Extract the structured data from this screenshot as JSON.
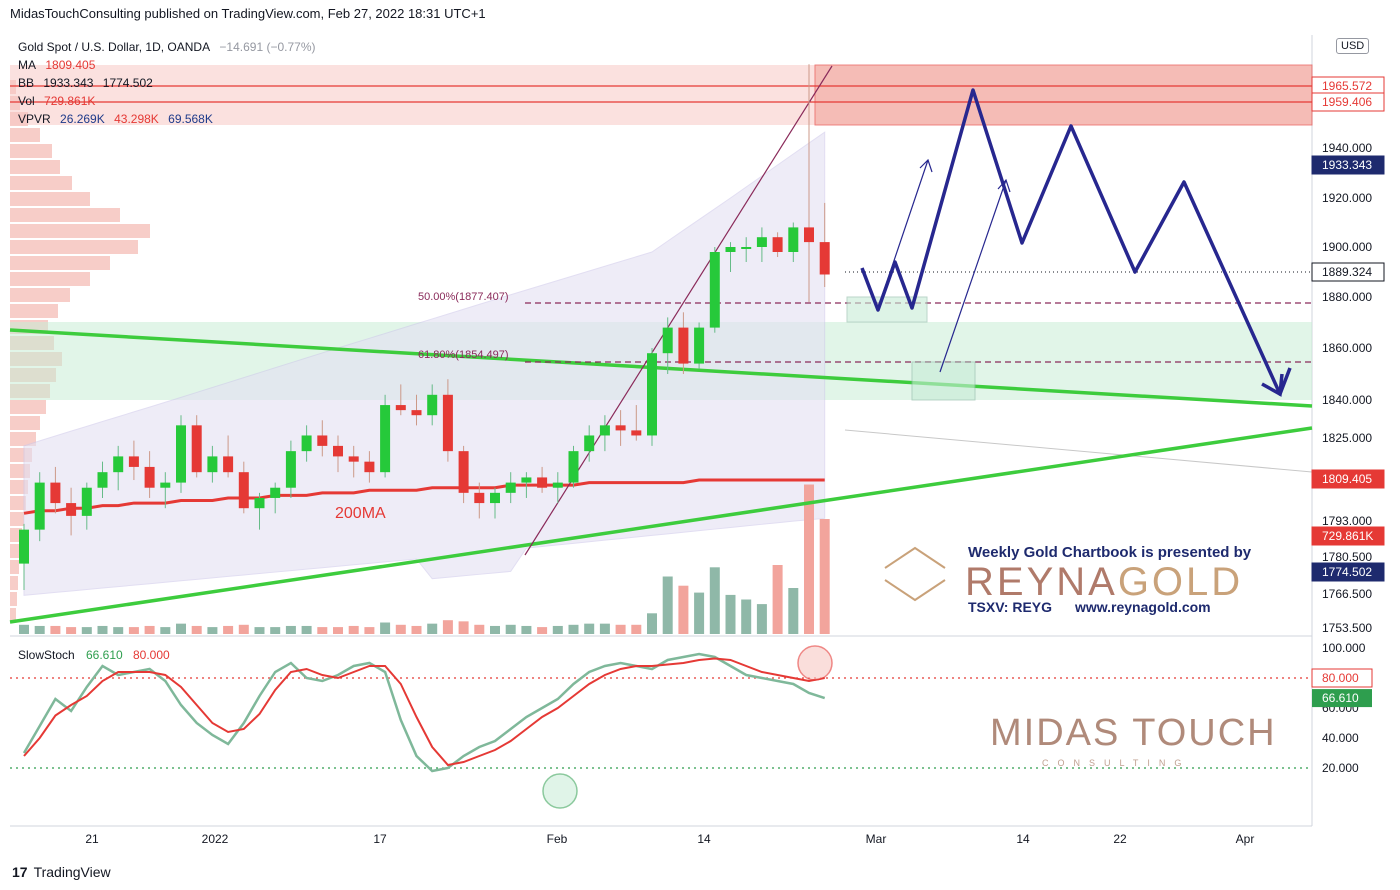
{
  "header": {
    "caption": "MidasTouchConsulting published on TradingView.com, Feb 27, 2022 18:31 UTC+1"
  },
  "legend": {
    "symbol": "Gold Spot / U.S. Dollar, 1D, OANDA",
    "change": "−14.691 (−0.77%)",
    "ma_label": "MA",
    "ma_value": "1809.405",
    "bb_label": "BB",
    "bb_upper": "1933.343",
    "bb_lower": "1774.502",
    "vol_label": "Vol",
    "vol_value": "729.861K",
    "vpvr_label": "VPVR",
    "vpvr_v1": "26.269K",
    "vpvr_v2": "43.298K",
    "vpvr_v3": "69.568K",
    "stoch_label": "SlowStoch",
    "stoch_k": "66.610",
    "stoch_d": "80.000",
    "currency": "USD"
  },
  "annotations": {
    "fib50": "50.00%(1877.407)",
    "fib618": "61.80%(1854.497)",
    "ma200": "200MA"
  },
  "sponsor": {
    "line1": "Weekly Gold Chartbook is presented by",
    "brand_a": "REYNA",
    "brand_b": "GOLD",
    "ticker": "TSXV: REYG",
    "url": "www.reynagold.com"
  },
  "watermark": {
    "main": "MIDAS TOUCH",
    "sub": "CONSULTING"
  },
  "footer": {
    "brand": "TradingView",
    "logo": "tradingview-logo"
  },
  "colors": {
    "up": "#26c93a",
    "down": "#e53935",
    "ma": "#e53935",
    "trend": "#3dcc3d",
    "projection": "#27278f",
    "stoch_k": "#7fb89a",
    "stoch_d": "#e53935"
  },
  "chart_data": {
    "type": "candlestick",
    "x_tick_labels": [
      "21",
      "2022",
      "17",
      "Feb",
      "14",
      "Mar",
      "14",
      "22",
      "Apr"
    ],
    "y_tick_labels": [
      "1753.500",
      "1766.500",
      "1780.500",
      "1793.000",
      "1825.000",
      "1840.000",
      "1860.000",
      "1880.000",
      "1900.000",
      "1920.000",
      "1940.000"
    ],
    "price_labels": [
      {
        "value": "1965.572",
        "color": "#e53935",
        "type": "outline"
      },
      {
        "value": "1959.406",
        "color": "#e53935",
        "type": "outline"
      },
      {
        "value": "1933.343",
        "color": "#1e2a6e",
        "type": "filled"
      },
      {
        "value": "1889.324",
        "color": "#131722",
        "type": "outline"
      },
      {
        "value": "1809.405",
        "color": "#e53935",
        "type": "filled"
      },
      {
        "value": "729.861K",
        "color": "#e53935",
        "type": "filled"
      },
      {
        "value": "1774.502",
        "color": "#1e2a6e",
        "type": "filled"
      }
    ],
    "ohlc": [
      [
        1778,
        1792,
        1768,
        1790
      ],
      [
        1790,
        1812,
        1786,
        1808
      ],
      [
        1808,
        1814,
        1796,
        1800
      ],
      [
        1800,
        1806,
        1788,
        1795
      ],
      [
        1795,
        1808,
        1790,
        1806
      ],
      [
        1806,
        1816,
        1802,
        1812
      ],
      [
        1812,
        1822,
        1805,
        1818
      ],
      [
        1818,
        1824,
        1809,
        1814
      ],
      [
        1814,
        1820,
        1802,
        1806
      ],
      [
        1806,
        1812,
        1798,
        1808
      ],
      [
        1808,
        1834,
        1804,
        1830
      ],
      [
        1830,
        1834,
        1810,
        1812
      ],
      [
        1812,
        1822,
        1808,
        1818
      ],
      [
        1818,
        1826,
        1810,
        1812
      ],
      [
        1812,
        1816,
        1796,
        1798
      ],
      [
        1798,
        1804,
        1790,
        1802
      ],
      [
        1802,
        1808,
        1796,
        1806
      ],
      [
        1806,
        1824,
        1802,
        1820
      ],
      [
        1820,
        1830,
        1816,
        1826
      ],
      [
        1826,
        1832,
        1818,
        1822
      ],
      [
        1822,
        1826,
        1812,
        1818
      ],
      [
        1818,
        1822,
        1810,
        1816
      ],
      [
        1816,
        1820,
        1808,
        1812
      ],
      [
        1812,
        1842,
        1810,
        1838
      ],
      [
        1838,
        1846,
        1834,
        1836
      ],
      [
        1836,
        1842,
        1830,
        1834
      ],
      [
        1834,
        1846,
        1830,
        1842
      ],
      [
        1842,
        1848,
        1816,
        1820
      ],
      [
        1820,
        1822,
        1800,
        1804
      ],
      [
        1804,
        1808,
        1794,
        1800
      ],
      [
        1800,
        1806,
        1794,
        1804
      ],
      [
        1804,
        1812,
        1800,
        1808
      ],
      [
        1808,
        1812,
        1802,
        1810
      ],
      [
        1810,
        1814,
        1804,
        1806
      ],
      [
        1806,
        1812,
        1800,
        1808
      ],
      [
        1808,
        1822,
        1806,
        1820
      ],
      [
        1820,
        1830,
        1816,
        1826
      ],
      [
        1826,
        1834,
        1820,
        1830
      ],
      [
        1830,
        1836,
        1822,
        1828
      ],
      [
        1828,
        1838,
        1824,
        1826
      ],
      [
        1826,
        1860,
        1822,
        1858
      ],
      [
        1858,
        1872,
        1850,
        1868
      ],
      [
        1868,
        1874,
        1850,
        1854
      ],
      [
        1854,
        1870,
        1852,
        1868
      ],
      [
        1868,
        1900,
        1866,
        1898
      ],
      [
        1898,
        1902,
        1890,
        1900
      ],
      [
        1900,
        1904,
        1894,
        1900
      ],
      [
        1900,
        1908,
        1894,
        1904
      ],
      [
        1904,
        1906,
        1896,
        1898
      ],
      [
        1898,
        1910,
        1894,
        1908
      ],
      [
        1908,
        1974,
        1878,
        1902
      ],
      [
        1902,
        1918,
        1884,
        1889
      ]
    ],
    "ma200": [
      1796,
      1797,
      1797,
      1798,
      1798,
      1799,
      1799,
      1800,
      1800,
      1800,
      1801,
      1801,
      1801,
      1802,
      1802,
      1802,
      1803,
      1803,
      1803,
      1804,
      1804,
      1804,
      1805,
      1805,
      1805,
      1805,
      1806,
      1806,
      1806,
      1806,
      1806,
      1807,
      1807,
      1807,
      1807,
      1807,
      1808,
      1808,
      1808,
      1808,
      1808,
      1808,
      1808,
      1809,
      1809,
      1809,
      1809,
      1809,
      1809,
      1809,
      1809,
      1809
    ],
    "volume": [
      8,
      7,
      7,
      6,
      6,
      7,
      6,
      6,
      7,
      6,
      9,
      7,
      6,
      7,
      8,
      6,
      6,
      7,
      7,
      6,
      6,
      7,
      6,
      10,
      8,
      7,
      9,
      12,
      11,
      8,
      7,
      8,
      7,
      6,
      7,
      8,
      9,
      9,
      8,
      8,
      18,
      50,
      42,
      36,
      58,
      34,
      30,
      26,
      60,
      40,
      130,
      100
    ],
    "stoch_k": [
      30,
      48,
      66,
      58,
      74,
      88,
      82,
      84,
      86,
      78,
      62,
      50,
      42,
      36,
      50,
      68,
      84,
      90,
      80,
      78,
      82,
      88,
      90,
      84,
      52,
      28,
      18,
      20,
      28,
      34,
      38,
      46,
      54,
      60,
      66,
      76,
      84,
      88,
      90,
      88,
      86,
      92,
      94,
      96,
      94,
      88,
      82,
      80,
      78,
      76,
      70,
      66.61
    ],
    "stoch_d": [
      28,
      40,
      55,
      62,
      68,
      78,
      84,
      84,
      84,
      82,
      74,
      62,
      50,
      44,
      46,
      56,
      72,
      84,
      86,
      82,
      80,
      84,
      88,
      88,
      76,
      54,
      34,
      22,
      24,
      28,
      32,
      38,
      46,
      54,
      60,
      68,
      76,
      82,
      86,
      88,
      88,
      89,
      90,
      92,
      93,
      92,
      88,
      84,
      82,
      80,
      78,
      80
    ]
  }
}
